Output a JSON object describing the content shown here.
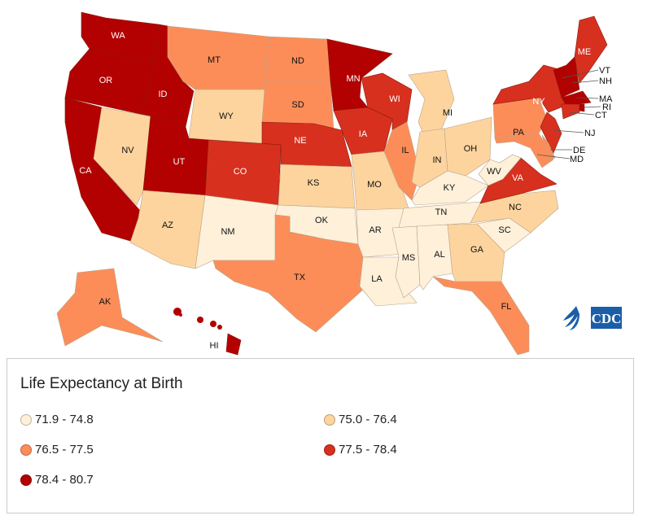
{
  "legend": {
    "title": "Life Expectancy at Birth",
    "bins": [
      {
        "label": "71.9 - 74.8",
        "color": "#fef0d9"
      },
      {
        "label": "75.0 - 76.4",
        "color": "#fdd49e"
      },
      {
        "label": "76.5 - 77.5",
        "color": "#fc8d59"
      },
      {
        "label": "77.5 - 78.4",
        "color": "#d7301f"
      },
      {
        "label": "78.4 - 80.7",
        "color": "#b30000"
      }
    ]
  },
  "logo": {
    "text": "CDC",
    "color": "#1a5ea8"
  },
  "states": [
    {
      "abbr": "WA",
      "bin": 4
    },
    {
      "abbr": "OR",
      "bin": 4
    },
    {
      "abbr": "CA",
      "bin": 4
    },
    {
      "abbr": "ID",
      "bin": 4
    },
    {
      "abbr": "NV",
      "bin": 1
    },
    {
      "abbr": "MT",
      "bin": 2
    },
    {
      "abbr": "WY",
      "bin": 1
    },
    {
      "abbr": "UT",
      "bin": 4
    },
    {
      "abbr": "AZ",
      "bin": 1
    },
    {
      "abbr": "CO",
      "bin": 3
    },
    {
      "abbr": "NM",
      "bin": 0
    },
    {
      "abbr": "ND",
      "bin": 2
    },
    {
      "abbr": "SD",
      "bin": 2
    },
    {
      "abbr": "NE",
      "bin": 3
    },
    {
      "abbr": "KS",
      "bin": 1
    },
    {
      "abbr": "OK",
      "bin": 0
    },
    {
      "abbr": "TX",
      "bin": 2
    },
    {
      "abbr": "MN",
      "bin": 4
    },
    {
      "abbr": "IA",
      "bin": 3
    },
    {
      "abbr": "MO",
      "bin": 1
    },
    {
      "abbr": "AR",
      "bin": 0
    },
    {
      "abbr": "LA",
      "bin": 0
    },
    {
      "abbr": "WI",
      "bin": 3
    },
    {
      "abbr": "IL",
      "bin": 2
    },
    {
      "abbr": "MI",
      "bin": 1
    },
    {
      "abbr": "IN",
      "bin": 1
    },
    {
      "abbr": "OH",
      "bin": 1
    },
    {
      "abbr": "KY",
      "bin": 0
    },
    {
      "abbr": "TN",
      "bin": 0
    },
    {
      "abbr": "MS",
      "bin": 0
    },
    {
      "abbr": "AL",
      "bin": 0
    },
    {
      "abbr": "GA",
      "bin": 1
    },
    {
      "abbr": "FL",
      "bin": 2
    },
    {
      "abbr": "SC",
      "bin": 0
    },
    {
      "abbr": "NC",
      "bin": 1
    },
    {
      "abbr": "VA",
      "bin": 3
    },
    {
      "abbr": "WV",
      "bin": 0
    },
    {
      "abbr": "PA",
      "bin": 2
    },
    {
      "abbr": "NY",
      "bin": 3
    },
    {
      "abbr": "NJ",
      "bin": 3
    },
    {
      "abbr": "MD",
      "bin": 2
    },
    {
      "abbr": "DE",
      "bin": 2
    },
    {
      "abbr": "VT",
      "bin": 4
    },
    {
      "abbr": "NH",
      "bin": 4
    },
    {
      "abbr": "ME",
      "bin": 3
    },
    {
      "abbr": "MA",
      "bin": 4
    },
    {
      "abbr": "RI",
      "bin": 4
    },
    {
      "abbr": "CT",
      "bin": 3
    },
    {
      "abbr": "AK",
      "bin": 2
    },
    {
      "abbr": "HI",
      "bin": 4
    }
  ]
}
